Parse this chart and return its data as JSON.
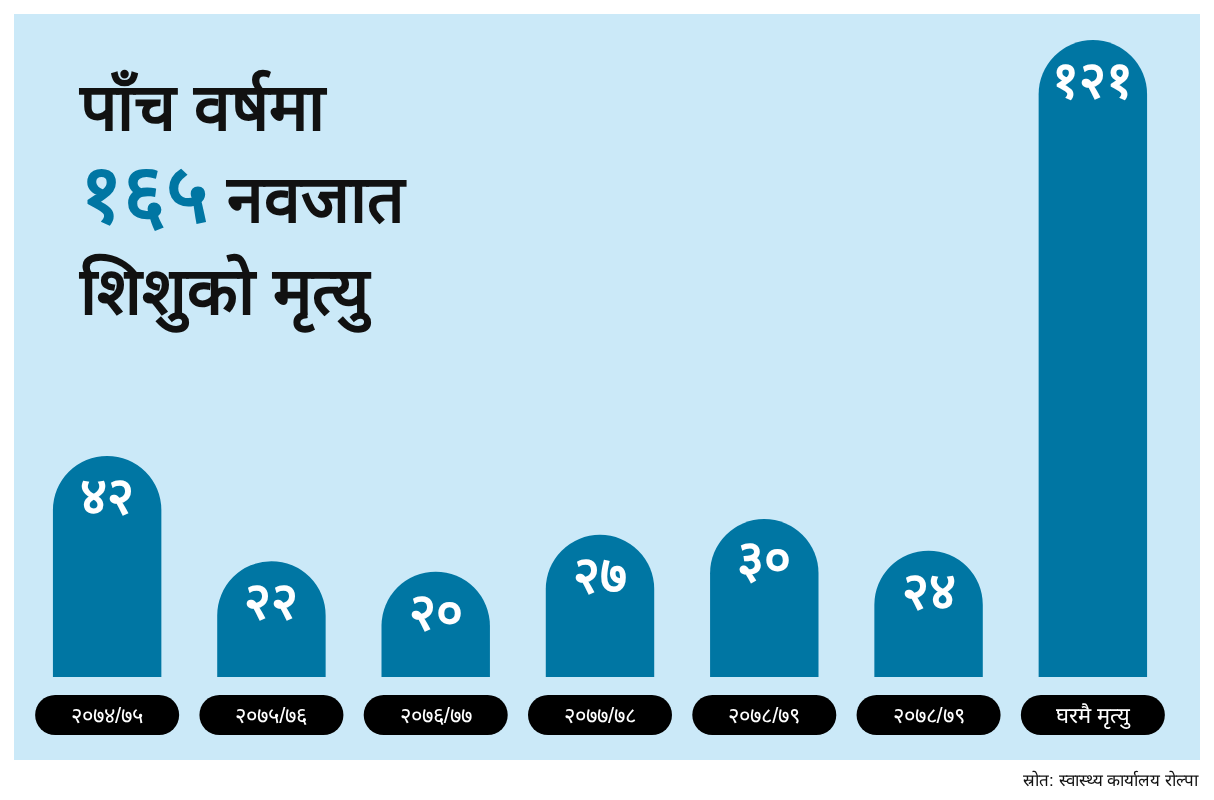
{
  "chart_data": {
    "type": "bar",
    "title": "पाँच वर्षमा\n१६५ नवजात\nशिशुको मृत्यु",
    "categories": [
      "२०७४/७५",
      "२०७५/७६",
      "२०७६/७७",
      "२०७७/७८",
      "२०७८/७९",
      "२०७८/७९",
      "घरमै मृत्यु"
    ],
    "values": [
      42,
      22,
      20,
      27,
      30,
      24,
      121
    ],
    "value_labels": [
      "४२",
      "२२",
      "२०",
      "२७",
      "३०",
      "२४",
      "१२१"
    ],
    "color": "#0076a3",
    "annotations": [
      "स्रोत: स्वास्थ्य कार्यालय रोल्पा"
    ]
  }
}
